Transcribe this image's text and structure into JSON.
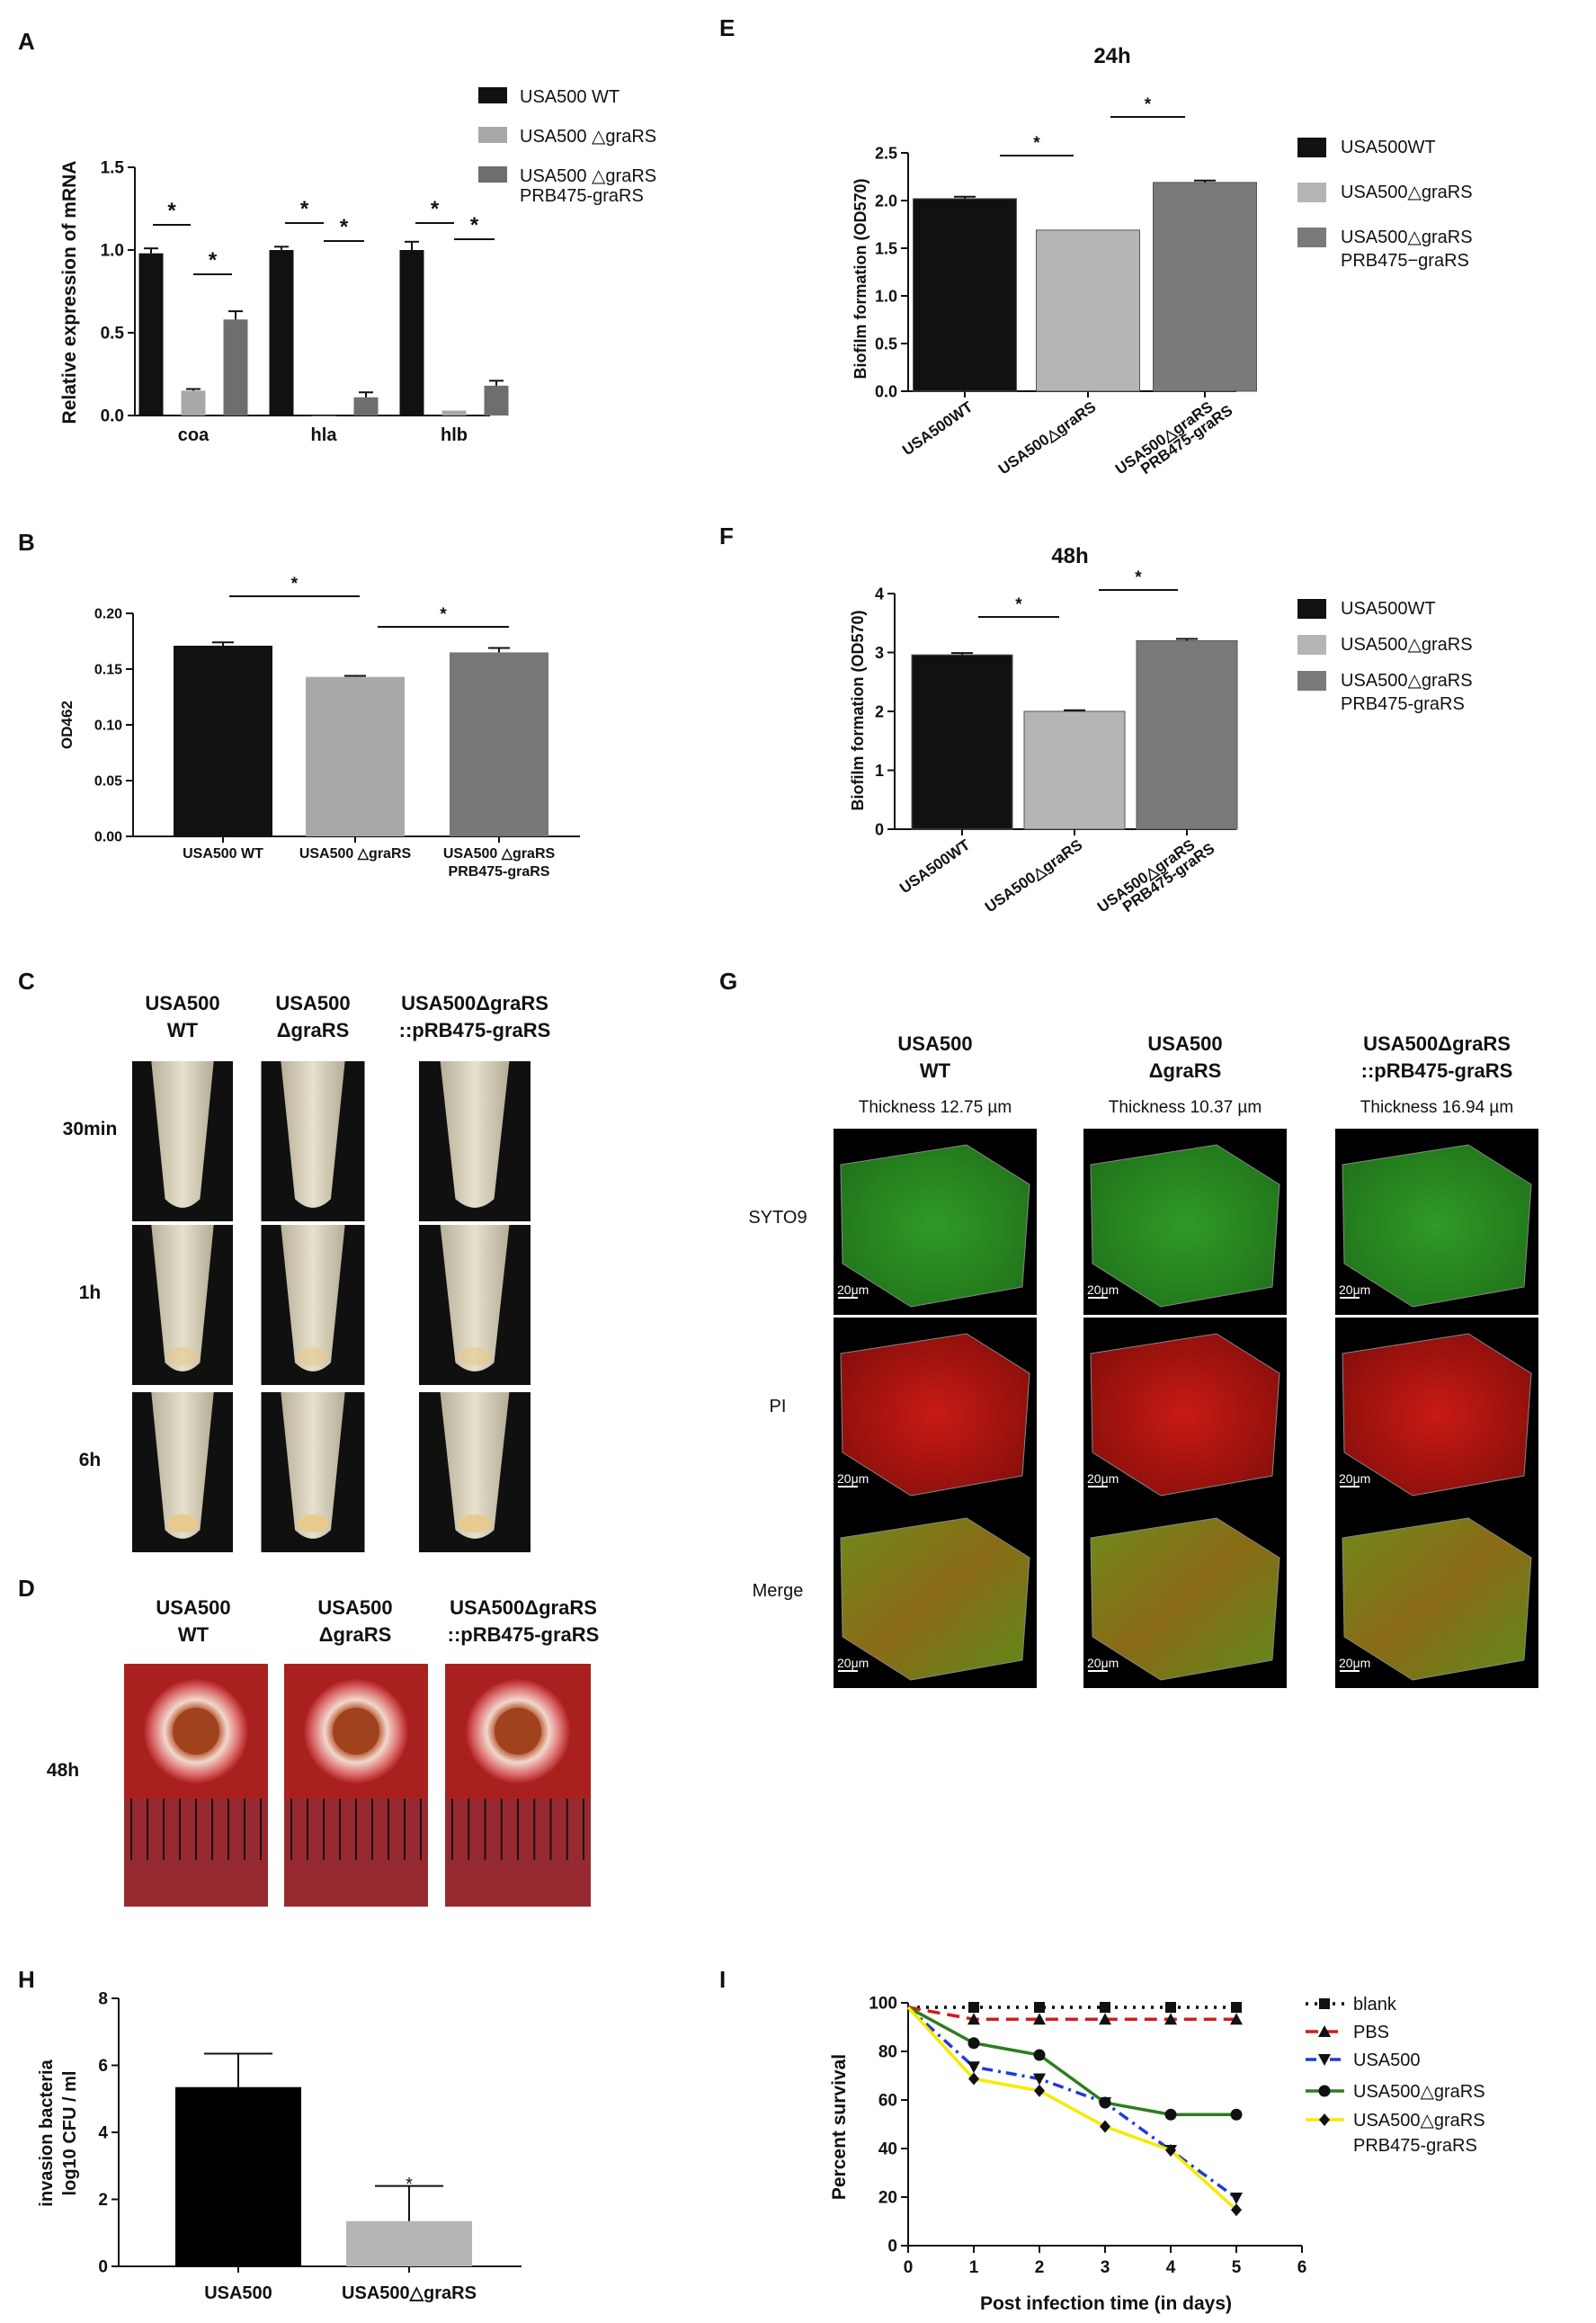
{
  "panels": {
    "A": {
      "letter": "A",
      "ylabel": "Relative expression of mRNA",
      "legend": [
        {
          "lines": [
            "USA500 WT"
          ],
          "color": "#111111"
        },
        {
          "lines": [
            "USA500 △graRS"
          ],
          "color": "#a8a8a8"
        },
        {
          "lines": [
            "USA500 △graRS",
            "PRB475-graRS"
          ],
          "color": "#6e6e6e"
        }
      ],
      "sig": "*"
    },
    "B": {
      "letter": "B",
      "ylabel": "OD462",
      "sig": "*"
    },
    "C": {
      "letter": "C",
      "columns": [
        [
          "USA500",
          "WT"
        ],
        [
          "USA500",
          "ΔgraRS"
        ],
        [
          "USA500ΔgraRS",
          "::pRB475-graRS"
        ]
      ],
      "rows": [
        "30min",
        "1h",
        "6h"
      ]
    },
    "D": {
      "letter": "D",
      "columns": [
        [
          "USA500",
          "WT"
        ],
        [
          "USA500",
          "ΔgraRS"
        ],
        [
          "USA500ΔgraRS",
          "::pRB475-graRS"
        ]
      ],
      "rows": [
        "48h"
      ]
    },
    "E": {
      "letter": "E",
      "title": "24h",
      "ylabel": "Biofilm formation (OD570)",
      "legend": [
        {
          "lines": [
            "USA500WT"
          ],
          "color": "#111111"
        },
        {
          "lines": [
            "USA500△graRS"
          ],
          "color": "#b5b5b5"
        },
        {
          "lines": [
            "USA500△graRS",
            "PRB475−graRS"
          ],
          "color": "#7a7a7a"
        }
      ],
      "sig": "*"
    },
    "F": {
      "letter": "F",
      "title": "48h",
      "ylabel": "Biofilm formation (OD570)",
      "legend": [
        {
          "lines": [
            "USA500WT"
          ],
          "color": "#111111"
        },
        {
          "lines": [
            "USA500△graRS"
          ],
          "color": "#b5b5b5"
        },
        {
          "lines": [
            "USA500△graRS",
            "PRB475-graRS"
          ],
          "color": "#7a7a7a"
        }
      ],
      "sig": "*"
    },
    "G": {
      "letter": "G",
      "columns": [
        [
          "USA500",
          "WT"
        ],
        [
          "USA500",
          "ΔgraRS"
        ],
        [
          "USA500ΔgraRS",
          "::pRB475-graRS"
        ]
      ],
      "thickness": [
        "Thickness 12.75 µm",
        "Thickness 10.37 µm",
        "Thickness 16.94 µm"
      ],
      "rows": [
        "SYTO9",
        "PI",
        "Merge"
      ],
      "scale": "20μm"
    },
    "H": {
      "letter": "H",
      "ylabel": [
        "invasion bacteria",
        "log10 CFU / ml"
      ],
      "sig": "*"
    },
    "I": {
      "letter": "I",
      "ylabel": "Percent survival",
      "xlabel": "Post infection time (in days)",
      "legend": [
        {
          "lines": [
            "blank"
          ]
        },
        {
          "lines": [
            "PBS"
          ]
        },
        {
          "lines": [
            "USA500"
          ]
        },
        {
          "lines": [
            "USA500△graRS"
          ]
        },
        {
          "lines": [
            "USA500△graRS",
            "PRB475-graRS"
          ]
        }
      ]
    }
  },
  "chart_data": [
    {
      "panel": "A",
      "type": "bar",
      "categories": [
        "coa",
        "hla",
        "hlb"
      ],
      "series": [
        {
          "name": "USA500 WT",
          "values": [
            0.98,
            1.0,
            1.0
          ],
          "errors": [
            0.03,
            0.02,
            0.05
          ],
          "color": "#111111"
        },
        {
          "name": "USA500 △graRS",
          "values": [
            0.15,
            0.0,
            0.03
          ],
          "errors": [
            0.01,
            0.0,
            0.0
          ],
          "color": "#a8a8a8"
        },
        {
          "name": "USA500 △graRS PRB475-graRS",
          "values": [
            0.58,
            0.11,
            0.18
          ],
          "errors": [
            0.05,
            0.03,
            0.03
          ],
          "color": "#6e6e6e"
        }
      ],
      "ylim": [
        0,
        1.5
      ],
      "yticks": [
        "0.0",
        "0.5",
        "1.0",
        "1.5"
      ]
    },
    {
      "panel": "B",
      "type": "bar",
      "categories": [
        [
          "USA500 WT"
        ],
        [
          "USA500  △graRS"
        ],
        [
          "USA500 △graRS",
          "PRB475-graRS"
        ]
      ],
      "values": [
        0.171,
        0.143,
        0.165
      ],
      "errors": [
        0.003,
        0.001,
        0.004
      ],
      "colors": [
        "#111111",
        "#a8a8a8",
        "#777777"
      ],
      "ylim": [
        0,
        0.2
      ],
      "yticks": [
        "0.00",
        "0.05",
        "0.10",
        "0.15",
        "0.20"
      ]
    },
    {
      "panel": "E",
      "type": "bar",
      "title": "24h",
      "categories": [
        [
          "USA500WT"
        ],
        [
          "USA500△graRS"
        ],
        [
          "USA500△graRS",
          "PRB475-graRS"
        ]
      ],
      "values": [
        2.02,
        1.69,
        2.19
      ],
      "errors": [
        0.02,
        0.0,
        0.02
      ],
      "colors": [
        "#111111",
        "#b5b5b5",
        "#7a7a7a"
      ],
      "ylim": [
        0,
        2.5
      ],
      "yticks": [
        "0.0",
        "0.5",
        "1.0",
        "1.5",
        "2.0",
        "2.5"
      ]
    },
    {
      "panel": "F",
      "type": "bar",
      "title": "48h",
      "categories": [
        [
          "USA500WT"
        ],
        [
          "USA500△graRS"
        ],
        [
          "USA500△graRS",
          "PRB475-graRS"
        ]
      ],
      "values": [
        2.96,
        2.0,
        3.2
      ],
      "errors": [
        0.03,
        0.02,
        0.03
      ],
      "colors": [
        "#111111",
        "#b5b5b5",
        "#7a7a7a"
      ],
      "ylim": [
        0,
        4
      ],
      "yticks": [
        "0",
        "1",
        "2",
        "3",
        "4"
      ]
    },
    {
      "panel": "H",
      "type": "bar",
      "categories": [
        "USA500",
        "USA500△graRS"
      ],
      "values": [
        5.35,
        1.35
      ],
      "errors": [
        1.0,
        1.05
      ],
      "colors": [
        "#000000",
        "#b5b5b5"
      ],
      "ylim": [
        0,
        8
      ],
      "yticks": [
        "0",
        "2",
        "4",
        "6",
        "8"
      ]
    },
    {
      "panel": "I",
      "type": "line",
      "x": [
        0,
        1,
        2,
        3,
        4,
        5
      ],
      "series": [
        {
          "name": "blank",
          "values": [
            100,
            100,
            100,
            100,
            100,
            100
          ],
          "color": "#000000",
          "marker": "square",
          "dash": "dotted"
        },
        {
          "name": "PBS",
          "values": [
            100,
            95,
            95,
            95,
            95,
            95
          ],
          "color": "#d01c1c",
          "marker": "triangle",
          "dash": "dashed"
        },
        {
          "name": "USA500",
          "values": [
            100,
            75,
            70,
            60,
            40,
            20
          ],
          "color": "#1f3bd1",
          "marker": "triangle-down",
          "dash": "dashdot"
        },
        {
          "name": "USA500△graRS",
          "values": [
            100,
            85,
            80,
            60,
            55,
            55
          ],
          "color": "#2e7d1f",
          "marker": "circle",
          "dash": "solid"
        },
        {
          "name": "USA500△graRS PRB475-graRS",
          "values": [
            100,
            70,
            65,
            50,
            40,
            15
          ],
          "color": "#f5ea00",
          "marker": "diamond",
          "dash": "solid"
        }
      ],
      "xlim": [
        0,
        6
      ],
      "ylim": [
        0,
        100
      ],
      "xticks": [
        "0",
        "1",
        "2",
        "3",
        "4",
        "5",
        "6"
      ],
      "yticks": [
        "0",
        "20",
        "40",
        "60",
        "80",
        "100"
      ]
    }
  ]
}
